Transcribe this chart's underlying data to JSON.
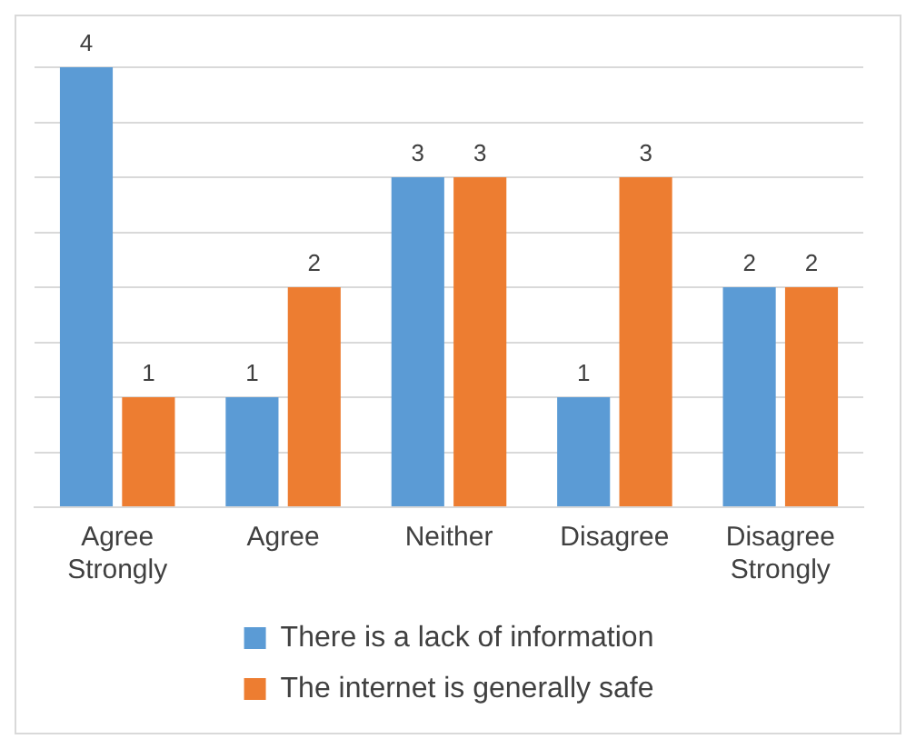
{
  "chart_data": {
    "type": "bar",
    "categories": [
      "Agree Strongly",
      "Agree",
      "Neither",
      "Disagree",
      "Disagree Strongly"
    ],
    "series": [
      {
        "name": "There is a lack of information",
        "color": "#5b9bd5",
        "values": [
          4,
          1,
          3,
          1,
          2
        ]
      },
      {
        "name": "The internet is generally safe",
        "color": "#ed7d31",
        "values": [
          1,
          2,
          3,
          3,
          2
        ]
      }
    ],
    "ylim": [
      0,
      4
    ],
    "yticks": [
      {
        "value": 0,
        "label": null
      },
      {
        "value": 0.5,
        "label": null
      },
      {
        "value": 1,
        "label": null
      },
      {
        "value": 1.5,
        "label": null
      },
      {
        "value": 2,
        "label": null
      },
      {
        "value": 2.5,
        "label": null
      },
      {
        "value": 3,
        "label": null
      },
      {
        "value": 3.5,
        "label": null
      },
      {
        "value": 4,
        "label": null
      }
    ],
    "tick_labels": "x",
    "grid": "y",
    "data_labels": true,
    "legend": "bottom"
  }
}
